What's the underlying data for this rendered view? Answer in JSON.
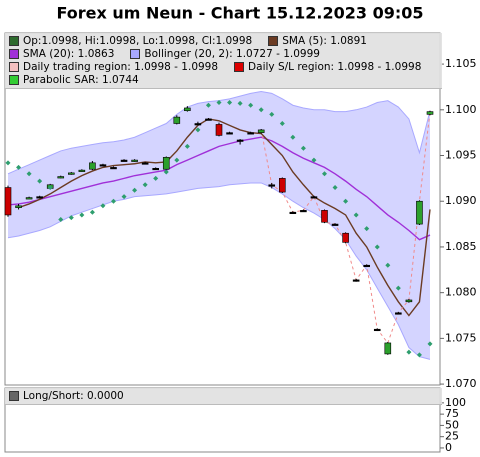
{
  "chart_data": [
    {
      "type": "candlestick",
      "title": "Forex um Neun - Chart 15.12.2023 09:05",
      "ylim": [
        1.0699,
        1.1084
      ],
      "yticks": [
        {
          "value": 1.07,
          "label": "1.070"
        },
        {
          "value": 1.075,
          "label": "1.075"
        },
        {
          "value": 1.08,
          "label": "1.080"
        },
        {
          "value": 1.085,
          "label": "1.085"
        },
        {
          "value": 1.09,
          "label": "1.090"
        },
        {
          "value": 1.095,
          "label": "1.095"
        },
        {
          "value": 1.1,
          "label": "1.100"
        },
        {
          "value": 1.105,
          "label": "1.105"
        }
      ],
      "grid": false,
      "legend": [
        {
          "label": "Op:1.0998, Hi:1.0998, Lo:1.0998, Cl:1.0998",
          "color": "#2e6b2e"
        },
        {
          "label": "SMA (5): 1.0891",
          "color": "#6b3b23"
        },
        {
          "label": "SMA (20): 1.0863",
          "color": "#a030d8"
        },
        {
          "label": "Bollinger (20, 2): 1.0727 - 1.0999",
          "color": "#a8a8ff"
        },
        {
          "label": "Daily trading region: 1.0998 - 1.0998",
          "color": "#f4c0c0"
        },
        {
          "label": "Daily S/L region: 1.0998 - 1.0998",
          "color": "#dd0000"
        },
        {
          "label": "Parabolic SAR: 1.0744",
          "color": "#33cc33"
        }
      ],
      "ohlc": {
        "up_color": "#2ca02c",
        "down_color": "#cc0000",
        "flat_color": "#000000",
        "open": [
          1.0915,
          1.0893,
          1.0903,
          1.0905,
          1.0914,
          1.0926,
          1.093,
          1.0933,
          1.0935,
          1.094,
          1.0937,
          1.0945,
          1.0944,
          1.0942,
          1.0936,
          1.0935,
          1.0985,
          1.0999,
          1.0985,
          1.099,
          1.0984,
          1.0975,
          1.0967,
          1.0975,
          1.0975,
          1.0918,
          1.0925,
          1.0888,
          1.089,
          1.0905,
          1.089,
          1.0875,
          1.0865,
          1.0814,
          1.083,
          1.076,
          1.0733,
          1.0778,
          1.079,
          1.0875,
          1.0995
        ],
        "high": [
          1.0917,
          1.0897,
          1.0905,
          1.0906,
          1.0919,
          1.0928,
          1.0932,
          1.0935,
          1.0944,
          1.0941,
          1.0938,
          1.0946,
          1.0946,
          1.0943,
          1.0937,
          1.0949,
          1.0994,
          1.1004,
          1.0987,
          1.0991,
          1.0986,
          1.0976,
          1.0968,
          1.0976,
          1.0979,
          1.092,
          1.0926,
          1.0889,
          1.0891,
          1.0906,
          1.0891,
          1.0876,
          1.0866,
          1.0815,
          1.0831,
          1.0761,
          1.0746,
          1.0779,
          1.0793,
          1.0901,
          1.0999
        ],
        "low": [
          1.0883,
          1.0891,
          1.0903,
          1.0904,
          1.0913,
          1.0925,
          1.0929,
          1.0932,
          1.0934,
          1.0939,
          1.0936,
          1.0944,
          1.0943,
          1.0941,
          1.0935,
          1.0934,
          1.0984,
          1.0998,
          1.0984,
          1.0989,
          1.0971,
          1.0974,
          1.0962,
          1.0974,
          1.0974,
          1.0914,
          1.0909,
          1.0886,
          1.0889,
          1.0904,
          1.0876,
          1.0874,
          1.0854,
          1.0812,
          1.0828,
          1.0758,
          1.0732,
          1.0777,
          1.0789,
          1.0874,
          1.0994
        ],
        "close": [
          1.0885,
          1.0895,
          1.0904,
          1.0905,
          1.0918,
          1.0927,
          1.0931,
          1.0934,
          1.0942,
          1.094,
          1.0937,
          1.0945,
          1.0945,
          1.0942,
          1.0936,
          1.0948,
          1.0992,
          1.1002,
          1.0985,
          1.099,
          1.0972,
          1.0975,
          1.0967,
          1.0975,
          1.0978,
          1.0918,
          1.091,
          1.0888,
          1.089,
          1.0905,
          1.0877,
          1.0875,
          1.0855,
          1.0814,
          1.083,
          1.076,
          1.0745,
          1.0778,
          1.0792,
          1.09,
          1.0998
        ]
      },
      "bollinger": {
        "color": "#a8a8ff",
        "fill": "#d4d4ff",
        "upper": [
          1.093,
          1.0935,
          1.094,
          1.0945,
          1.095,
          1.0955,
          1.0958,
          1.096,
          1.0962,
          1.0964,
          1.0965,
          1.0967,
          1.097,
          1.0975,
          1.098,
          1.0985,
          1.0995,
          1.1003,
          1.1007,
          1.1009,
          1.101,
          1.1012,
          1.1015,
          1.1018,
          1.102,
          1.1018,
          1.1012,
          1.1005,
          1.1002,
          1.1,
          1.1,
          1.0998,
          1.0998,
          1.1,
          1.1003,
          1.1008,
          1.101,
          1.1003,
          1.099,
          1.0953,
          1.0999
        ],
        "lower": [
          1.086,
          1.0862,
          1.0865,
          1.0868,
          1.0872,
          1.0878,
          1.0884,
          1.0888,
          1.0892,
          1.0896,
          1.09,
          1.0902,
          1.0905,
          1.0906,
          1.0907,
          1.0908,
          1.091,
          1.0912,
          1.0914,
          1.0915,
          1.0916,
          1.0918,
          1.0919,
          1.092,
          1.092,
          1.0915,
          1.0908,
          1.09,
          1.0893,
          1.0887,
          1.088,
          1.087,
          1.0858,
          1.084,
          1.0825,
          1.0805,
          1.0785,
          1.0765,
          1.074,
          1.073,
          1.0727
        ]
      },
      "lines": [
        {
          "color": "#a030d8",
          "dashed": false,
          "values": [
            1.0896,
            1.0897,
            1.0899,
            1.0902,
            1.0905,
            1.0908,
            1.0911,
            1.0914,
            1.0917,
            1.092,
            1.0922,
            1.0925,
            1.0928,
            1.093,
            1.0932,
            1.0934,
            1.094,
            1.0945,
            1.095,
            1.0955,
            1.096,
            1.0963,
            1.0966,
            1.0968,
            1.097,
            1.0966,
            1.096,
            1.0953,
            1.0947,
            1.0942,
            1.0937,
            1.093,
            1.0922,
            1.0913,
            1.0905,
            1.0895,
            1.0885,
            1.0877,
            1.0868,
            1.0858,
            1.0863
          ]
        },
        {
          "color": "#6b3b23",
          "dashed": false,
          "values": [
            null,
            1.0893,
            1.0897,
            1.0902,
            1.0908,
            1.0915,
            1.0922,
            1.0928,
            1.0933,
            1.0937,
            1.0939,
            1.094,
            1.0941,
            1.0943,
            1.0942,
            1.0943,
            1.0955,
            1.097,
            1.0983,
            1.099,
            1.0988,
            1.0983,
            1.0978,
            1.0975,
            1.0974,
            1.0962,
            1.095,
            1.0932,
            1.0918,
            1.0905,
            1.0898,
            1.0892,
            1.0885,
            1.0865,
            1.085,
            1.0828,
            1.0808,
            1.079,
            1.0775,
            1.079,
            1.0891
          ]
        },
        {
          "color": "#f08a8a",
          "dashed": true,
          "values": [
            null,
            null,
            null,
            null,
            null,
            null,
            null,
            null,
            null,
            null,
            null,
            null,
            null,
            null,
            null,
            null,
            null,
            null,
            null,
            null,
            null,
            null,
            null,
            null,
            1.0978,
            1.0918,
            1.091,
            1.0888,
            1.089,
            1.0905,
            1.0877,
            1.0875,
            1.0855,
            1.0814,
            1.083,
            1.076,
            1.0745,
            1.0778,
            1.0792,
            1.09,
            1.0998
          ]
        }
      ],
      "sar": {
        "color": "#2e9e6e",
        "values": [
          1.0942,
          1.0937,
          1.093,
          1.0922,
          1.0915,
          1.088,
          1.0882,
          1.0885,
          1.0888,
          1.0895,
          1.09,
          1.0905,
          1.0912,
          1.0918,
          1.0925,
          1.0932,
          1.0945,
          1.096,
          1.0978,
          1.1005,
          1.1008,
          1.1008,
          1.1007,
          1.1005,
          1.1,
          1.0995,
          1.0985,
          1.097,
          1.0958,
          1.0945,
          1.093,
          1.0915,
          1.09,
          1.0885,
          1.087,
          1.085,
          1.083,
          1.0805,
          1.0735,
          1.0732,
          1.0744
        ]
      }
    },
    {
      "type": "line",
      "ylim": [
        -9,
        133
      ],
      "yticks": [
        0,
        25,
        50,
        75,
        100
      ],
      "legend": [
        {
          "label": "Long/Short: 0.0000",
          "color": "#666666"
        }
      ]
    }
  ]
}
